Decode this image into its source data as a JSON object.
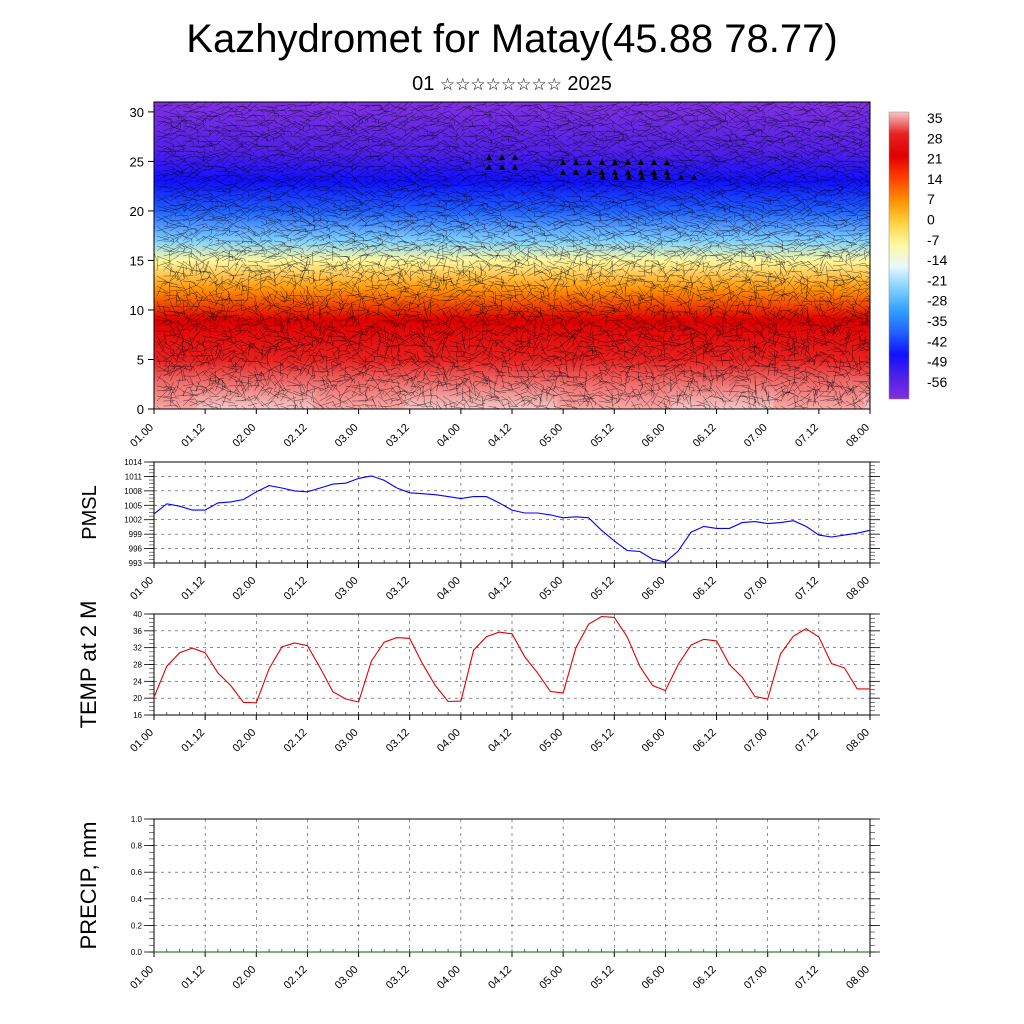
{
  "title": "Kazhydromet for Matay(45.88 78.77)",
  "subtitle": {
    "day": "01",
    "month_placeholder": "☆☆☆☆☆☆☆☆",
    "year": "2025"
  },
  "time_axis": {
    "ticks": [
      "01.00",
      "01.12",
      "02.00",
      "02.12",
      "03.00",
      "03.12",
      "04.00",
      "04.12",
      "05.00",
      "05.12",
      "06.00",
      "06.12",
      "07.00",
      "07.12",
      "08.00"
    ]
  },
  "chart_data": [
    {
      "type": "heatmap",
      "name": "temperature-wind-cross-section",
      "ylim": [
        0,
        31
      ],
      "yticks": [
        0,
        5,
        10,
        15,
        20,
        25,
        30
      ],
      "colorbar": {
        "labels": [
          "35",
          "28",
          "21",
          "14",
          "7",
          "0",
          "-7",
          "-14",
          "-21",
          "-28",
          "-35",
          "-42",
          "-49",
          "-56"
        ],
        "stops": [
          "#f5c8c8",
          "#e82020",
          "#e00000",
          "#ff4000",
          "#ff9000",
          "#ffd040",
          "#fff8a0",
          "#e8f8ff",
          "#80d0ff",
          "#30a0ff",
          "#2060ff",
          "#1010ff",
          "#5020e8",
          "#8030e0"
        ]
      },
      "layers": [
        {
          "height": 0,
          "value": 33
        },
        {
          "height": 5,
          "value": 28
        },
        {
          "height": 9,
          "value": 18
        },
        {
          "height": 12,
          "value": 8
        },
        {
          "height": 15,
          "value": -5
        },
        {
          "height": 17,
          "value": -18
        },
        {
          "height": 20,
          "value": -32
        },
        {
          "height": 23,
          "value": -45
        },
        {
          "height": 26,
          "value": -52
        },
        {
          "height": 31,
          "value": -58
        }
      ],
      "warm_cores": [
        {
          "time": "01.00",
          "height": 0,
          "value": 33
        },
        {
          "time": "03.00",
          "height": 0,
          "value": 34
        },
        {
          "time": "05.12",
          "height": 0,
          "value": 38
        },
        {
          "time": "07.12",
          "height": 0,
          "value": 34
        }
      ]
    },
    {
      "type": "line",
      "name": "PMSL",
      "ylabel": "PMSL",
      "ylim": [
        993,
        1014
      ],
      "yticks": [
        993,
        996,
        999,
        1002,
        1005,
        1008,
        1011,
        1014
      ],
      "color": "#0000ff",
      "x": [
        0,
        3,
        6,
        9,
        12,
        15,
        18,
        21,
        24,
        27,
        30,
        33,
        36,
        39,
        42,
        45,
        48,
        51,
        54,
        57,
        60,
        63,
        66,
        69,
        72,
        75,
        78,
        81,
        84,
        87,
        90,
        93,
        96,
        99,
        102,
        105,
        108,
        111,
        114,
        117,
        120,
        123,
        126,
        129,
        132,
        135,
        138,
        141,
        144,
        147,
        150,
        153,
        156,
        159,
        162,
        165,
        168
      ],
      "y": [
        1003.2,
        1005.3,
        1004.8,
        1004.0,
        1004.0,
        1005.5,
        1005.7,
        1006.2,
        1007.8,
        1009.1,
        1008.6,
        1008.0,
        1007.8,
        1008.6,
        1009.4,
        1009.6,
        1010.6,
        1011.1,
        1010.2,
        1008.6,
        1007.6,
        1007.4,
        1007.2,
        1006.8,
        1006.4,
        1006.8,
        1006.8,
        1005.5,
        1004.0,
        1003.4,
        1003.4,
        1003.0,
        1002.4,
        1002.6,
        1002.4,
        999.8,
        997.6,
        995.6,
        995.4,
        993.8,
        993.2,
        995.5,
        999.4,
        1000.6,
        1000.2,
        1000.2,
        1001.4,
        1001.6,
        1001.2,
        1001.4,
        1001.8,
        1000.6,
        998.8,
        998.4,
        998.8,
        999.2,
        999.8
      ]
    },
    {
      "type": "line",
      "name": "TEMP at 2 M",
      "ylabel": "TEMP at 2 M",
      "ylim": [
        16,
        40
      ],
      "yticks": [
        16,
        20,
        24,
        28,
        32,
        36,
        40
      ],
      "color": "#e00000",
      "x": [
        0,
        3,
        6,
        9,
        12,
        15,
        18,
        21,
        24,
        27,
        30,
        33,
        36,
        39,
        42,
        45,
        48,
        51,
        54,
        57,
        60,
        63,
        66,
        69,
        72,
        75,
        78,
        81,
        84,
        87,
        90,
        93,
        96,
        99,
        102,
        105,
        108,
        111,
        114,
        117,
        120,
        123,
        126,
        129,
        132,
        135,
        138,
        141,
        144,
        147,
        150,
        153,
        156,
        159,
        162,
        165,
        168
      ],
      "y": [
        20.2,
        27.6,
        30.8,
        31.9,
        30.8,
        26.0,
        23.0,
        19.0,
        18.9,
        27.0,
        32.2,
        33.1,
        32.5,
        27.2,
        21.5,
        19.8,
        19.1,
        28.8,
        33.3,
        34.4,
        34.2,
        28.2,
        23.0,
        19.2,
        19.3,
        31.4,
        34.6,
        35.7,
        35.3,
        29.8,
        26.0,
        21.6,
        21.2,
        32.0,
        37.6,
        39.4,
        39.2,
        34.6,
        27.5,
        23.0,
        21.8,
        28.0,
        32.6,
        34.0,
        33.6,
        28.0,
        25.0,
        20.4,
        19.8,
        30.5,
        34.7,
        36.5,
        34.5,
        28.2,
        27.2,
        22.2,
        22.2
      ]
    },
    {
      "type": "line",
      "name": "PRECIP, mm",
      "ylabel": "PRECIP, mm",
      "ylim": [
        0,
        1
      ],
      "yticks": [
        "0.0",
        "0.2",
        "0.4",
        "0.6",
        "0.8",
        "1.0"
      ],
      "color": "#006400",
      "x": [
        0,
        168
      ],
      "y": [
        0,
        0
      ]
    }
  ]
}
